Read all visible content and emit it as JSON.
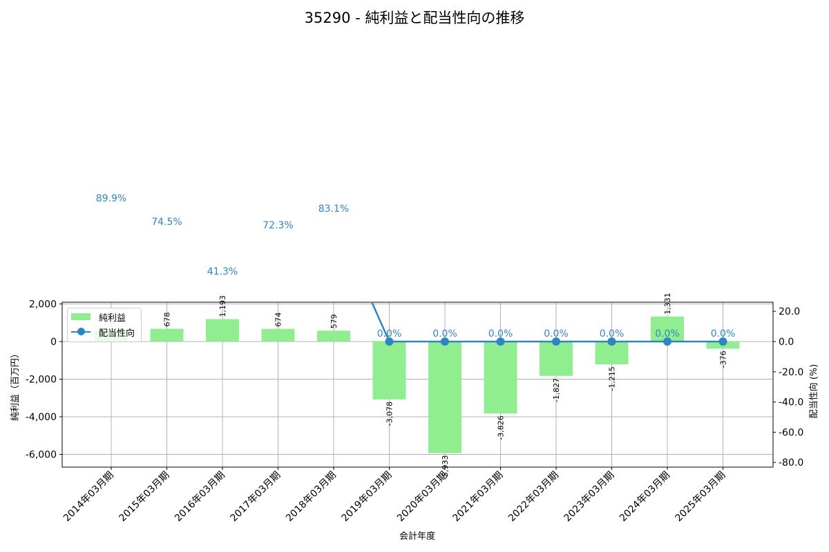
{
  "chart_data": {
    "type": "bar+line",
    "title": "35290 - 純利益と配当性向の推移",
    "xlabel": "会計年度",
    "ylabel_left": "純利益（百万円）",
    "ylabel_right": "配当性向 (%)",
    "categories": [
      "2014年03月期",
      "2015年03月期",
      "2016年03月期",
      "2017年03月期",
      "2018年03月期",
      "2019年03月期",
      "2020年03月期",
      "2021年03月期",
      "2022年03月期",
      "2023年03月期",
      "2024年03月期",
      "2025年03月期"
    ],
    "series": [
      {
        "name": "純利益",
        "type": "bar",
        "axis": "left",
        "color": "#90ee90",
        "values": [
          550,
          678,
          1193,
          674,
          579,
          -3078,
          -5933,
          -3826,
          -1827,
          -1215,
          1331,
          -376
        ],
        "labels": [
          "",
          "678",
          "1,193",
          "674",
          "579",
          "-3,078",
          "-5,933",
          "-3,826",
          "-1,827",
          "-1,215",
          "1,331",
          "-376"
        ]
      },
      {
        "name": "配当性向",
        "type": "line",
        "axis": "right",
        "color": "#2e86c1",
        "values": [
          89.9,
          74.5,
          41.3,
          72.3,
          83.1,
          0.0,
          0.0,
          0.0,
          0.0,
          0.0,
          0.0,
          0.0
        ],
        "labels": [
          "89.9%",
          "74.5%",
          "41.3%",
          "72.3%",
          "83.1%",
          "0.0%",
          "0.0%",
          "0.0%",
          "0.0%",
          "0.0%",
          "0.0%",
          "0.0%"
        ]
      }
    ],
    "ylim_left": [
      -6600,
      2100
    ],
    "ylim_right": [
      -80,
      25
    ],
    "yticks_left": [
      "2,000",
      "0",
      "-2,000",
      "-4,000",
      "-6,000"
    ],
    "yticks_right": [
      "20.0",
      "0.0",
      "-20.0",
      "-40.0",
      "-60.0",
      "-80.0"
    ],
    "grid": true,
    "legend_position": "upper left"
  },
  "legend": {
    "bar_label": "純利益",
    "line_label": "配当性向"
  }
}
